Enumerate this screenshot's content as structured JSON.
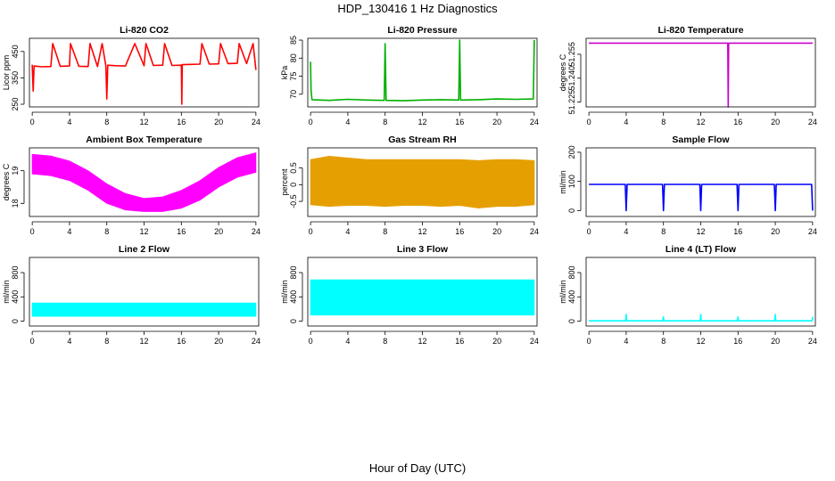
{
  "figure": {
    "title": "HDP_130416  1 Hz Diagnostics",
    "xlabel": "Hour of Day (UTC)"
  },
  "chart_data": [
    {
      "type": "line",
      "title": "Li-820 CO2",
      "xlabel": "",
      "ylabel": "Licor ppm",
      "color": "#ff0000",
      "xlim": [
        -0.3,
        24.3
      ],
      "ylim": [
        240,
        500
      ],
      "xticks": [
        0,
        4,
        8,
        12,
        16,
        20,
        24
      ],
      "yticks": [
        250,
        350,
        450
      ],
      "series": [
        {
          "name": "",
          "x": [
            0,
            0.1,
            0.2,
            1,
            2,
            2.2,
            3,
            4,
            4.1,
            5,
            6,
            6.2,
            7,
            7.5,
            7.9,
            8.0,
            8.1,
            9,
            10,
            11,
            12,
            12.2,
            13,
            14,
            14.2,
            15,
            16,
            16.05,
            16.1,
            17,
            18,
            18.2,
            19,
            20,
            20.2,
            21,
            22,
            22.2,
            23,
            23.7,
            24
          ],
          "values": [
            400,
            300,
            395,
            392,
            393,
            480,
            394,
            395,
            480,
            394,
            393,
            480,
            393,
            480,
            395,
            270,
            398,
            396,
            395,
            480,
            396,
            480,
            397,
            398,
            480,
            397,
            398,
            250,
            400,
            401,
            402,
            480,
            402,
            403,
            480,
            404,
            405,
            480,
            404,
            480,
            380
          ]
        }
      ]
    },
    {
      "type": "line",
      "title": "Li-820 Pressure",
      "xlabel": "",
      "ylabel": "kPa",
      "color": "#00b000",
      "xlim": [
        -0.3,
        24.3
      ],
      "ylim": [
        66.5,
        85.5
      ],
      "xticks": [
        0,
        4,
        8,
        12,
        16,
        20,
        24
      ],
      "yticks": [
        70,
        75,
        80,
        85
      ],
      "series": [
        {
          "name": "",
          "x": [
            0,
            0.05,
            0.15,
            2,
            4,
            6,
            7.9,
            8.0,
            8.1,
            10,
            12,
            14,
            15.9,
            16.0,
            16.1,
            18,
            20,
            22,
            23.9,
            24.0
          ],
          "values": [
            79,
            71,
            68.5,
            68.3,
            68.6,
            68.4,
            68.3,
            84,
            68.3,
            68.2,
            68.4,
            68.5,
            68.4,
            85,
            68.4,
            68.5,
            68.7,
            68.6,
            68.7,
            85
          ]
        }
      ]
    },
    {
      "type": "line",
      "title": "Li-820 Temperature",
      "xlabel": "",
      "ylabel": "degrees C",
      "color": "#cc00cc",
      "xlim": [
        -0.3,
        24.3
      ],
      "ylim": [
        51.222,
        51.265
      ],
      "xticks": [
        0,
        4,
        8,
        12,
        16,
        20,
        24
      ],
      "yticks": [
        51.225,
        51.24,
        51.255
      ],
      "ytick_labels": [
        "51.225",
        "51.240",
        "51.255"
      ],
      "series": [
        {
          "name": "",
          "x": [
            0,
            14.9,
            14.95,
            15.0,
            24
          ],
          "values": [
            51.262,
            51.262,
            51.222,
            51.262,
            51.262
          ]
        }
      ]
    },
    {
      "type": "area",
      "title": "Ambient Box Temperature",
      "xlabel": "",
      "ylabel": "degrees C",
      "color": "#ff00ff",
      "xlim": [
        -0.3,
        24.3
      ],
      "ylim": [
        17.6,
        19.7
      ],
      "xticks": [
        0,
        4,
        8,
        12,
        16,
        20,
        24
      ],
      "yticks": [
        18.0,
        19.0
      ],
      "series": [
        {
          "name": "upper",
          "x": [
            0,
            2,
            4,
            6,
            8,
            10,
            12,
            14,
            16,
            18,
            20,
            22,
            24
          ],
          "values": [
            19.5,
            19.45,
            19.3,
            19.0,
            18.6,
            18.3,
            18.15,
            18.2,
            18.4,
            18.7,
            19.1,
            19.4,
            19.55
          ]
        },
        {
          "name": "lower",
          "x": [
            0,
            2,
            4,
            6,
            8,
            10,
            12,
            14,
            16,
            18,
            20,
            22,
            24
          ],
          "values": [
            18.9,
            18.85,
            18.7,
            18.4,
            18.0,
            17.8,
            17.75,
            17.75,
            17.85,
            18.1,
            18.5,
            18.8,
            18.95
          ]
        }
      ]
    },
    {
      "type": "area",
      "title": "Gas Stream RH",
      "xlabel": "",
      "ylabel": "percent",
      "color": "#e69f00",
      "xlim": [
        -0.3,
        24.3
      ],
      "ylim": [
        -0.95,
        1.1
      ],
      "xticks": [
        0,
        4,
        8,
        12,
        16,
        20,
        24
      ],
      "yticks": [
        -0.5,
        0.0,
        0.5
      ],
      "series": [
        {
          "name": "upper",
          "x": [
            0,
            2,
            4,
            6,
            8,
            10,
            12,
            14,
            16,
            18,
            20,
            22,
            24
          ],
          "values": [
            0.75,
            0.85,
            0.8,
            0.75,
            0.75,
            0.75,
            0.75,
            0.75,
            0.75,
            0.72,
            0.75,
            0.75,
            0.72
          ]
        },
        {
          "name": "lower",
          "x": [
            0,
            2,
            4,
            6,
            8,
            10,
            12,
            14,
            16,
            18,
            20,
            22,
            24
          ],
          "values": [
            -0.6,
            -0.65,
            -0.62,
            -0.62,
            -0.65,
            -0.62,
            -0.62,
            -0.65,
            -0.62,
            -0.7,
            -0.65,
            -0.65,
            -0.6
          ]
        }
      ]
    },
    {
      "type": "line",
      "title": "Sample Flow",
      "xlabel": "",
      "ylabel": "ml/min",
      "color": "#0000ff",
      "xlim": [
        -0.3,
        24.3
      ],
      "ylim": [
        -20,
        215
      ],
      "xticks": [
        0,
        4,
        8,
        12,
        16,
        20,
        24
      ],
      "yticks": [
        0,
        100,
        200
      ],
      "series": [
        {
          "name": "",
          "x": [
            0,
            3.9,
            4.0,
            4.1,
            7.9,
            8.0,
            8.1,
            11.9,
            12.0,
            12.1,
            15.9,
            16.0,
            16.1,
            19.9,
            20.0,
            20.1,
            23.9,
            24.0
          ],
          "values": [
            90,
            90,
            0,
            90,
            90,
            0,
            90,
            90,
            0,
            90,
            90,
            0,
            90,
            90,
            0,
            90,
            90,
            0
          ]
        }
      ]
    },
    {
      "type": "area",
      "title": "Line 2 Flow",
      "xlabel": "",
      "ylabel": "ml/min",
      "color": "#00ffff",
      "xlim": [
        -0.3,
        24.3
      ],
      "ylim": [
        -80,
        1050
      ],
      "xticks": [
        0,
        4,
        8,
        12,
        16,
        20,
        24
      ],
      "yticks": [
        0,
        400,
        800
      ],
      "series": [
        {
          "name": "upper",
          "x": [
            0,
            24
          ],
          "values": [
            300,
            300
          ]
        },
        {
          "name": "lower",
          "x": [
            0,
            24
          ],
          "values": [
            80,
            80
          ]
        }
      ]
    },
    {
      "type": "area",
      "title": "Line 3 Flow",
      "xlabel": "",
      "ylabel": "ml/min",
      "color": "#00ffff",
      "xlim": [
        -0.3,
        24.3
      ],
      "ylim": [
        -80,
        1050
      ],
      "xticks": [
        0,
        4,
        8,
        12,
        16,
        20,
        24
      ],
      "yticks": [
        0,
        400,
        800
      ],
      "series": [
        {
          "name": "upper",
          "x": [
            0,
            24
          ],
          "values": [
            680,
            680
          ]
        },
        {
          "name": "lower",
          "x": [
            0,
            24
          ],
          "values": [
            100,
            100
          ]
        }
      ]
    },
    {
      "type": "line",
      "title": "Line 4 (LT) Flow",
      "xlabel": "",
      "ylabel": "ml/min",
      "color": "#00ffff",
      "xlim": [
        -0.3,
        24.3
      ],
      "ylim": [
        -80,
        1050
      ],
      "xticks": [
        0,
        4,
        8,
        12,
        16,
        20,
        24
      ],
      "yticks": [
        0,
        400,
        800
      ],
      "series": [
        {
          "name": "",
          "x": [
            0,
            3.95,
            4.0,
            4.05,
            7.95,
            8.0,
            8.05,
            11.95,
            12.0,
            12.05,
            15.95,
            16.0,
            16.05,
            19.95,
            20.0,
            20.05,
            23.95,
            24.0
          ],
          "values": [
            5,
            5,
            110,
            5,
            5,
            70,
            5,
            5,
            110,
            5,
            5,
            70,
            5,
            5,
            110,
            5,
            5,
            70
          ]
        }
      ]
    }
  ]
}
